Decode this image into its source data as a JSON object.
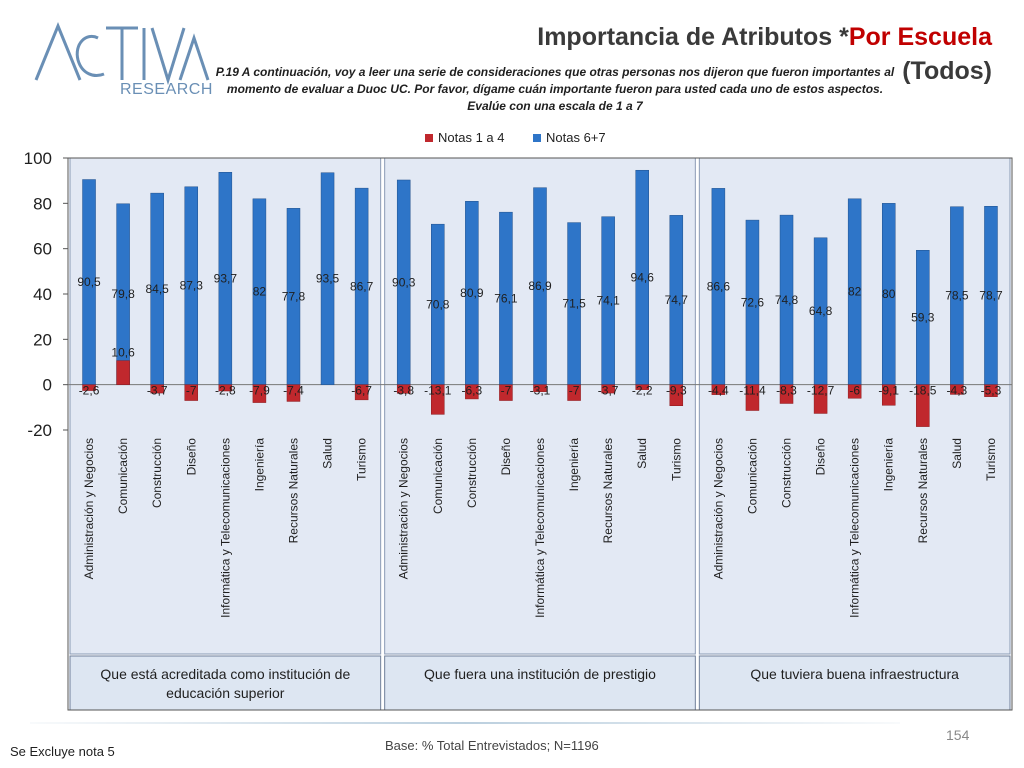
{
  "slide": {
    "title_main": "Importancia de Atributos *",
    "title_red": "Por Escuela",
    "title_line2": "(Todos)",
    "question": "P.19 A continuación, voy a leer una serie de consideraciones que otras personas nos dijeron que fueron importantes al momento de evaluar a Duoc UC. Por favor, dígame cuán importante fueron para usted cada uno de estos aspectos. Evalúe con una escala de 1 a 7",
    "logo_main": "ACTIVA",
    "logo_sub": "RESEARCH",
    "footer_note": "Se Excluye nota 5",
    "footer_base": "Base: % Total Entrevistados; N=1196",
    "page_number": "154",
    "colors": {
      "positive": "#2e75c8",
      "negative": "#c0282d",
      "title_red": "#c00000"
    }
  },
  "chart_data": {
    "type": "bar",
    "ylim": [
      -20,
      100
    ],
    "yticks": [
      -20,
      0,
      20,
      40,
      60,
      80,
      100
    ],
    "legend": [
      {
        "name": "Notas 1 a 4",
        "color": "#c0282d"
      },
      {
        "name": "Notas 6+7",
        "color": "#2e75c8"
      }
    ],
    "legend_position": "top",
    "categories": [
      "Administración y Negocios",
      "Comunicación",
      "Construcción",
      "Diseño",
      "Informática y Telecomunicaciones",
      "Ingeniería",
      "Recursos Naturales",
      "Salud",
      "Turismo"
    ],
    "groups": [
      {
        "name": "Que está acreditada como institución de educación superior",
        "notas_6_7": [
          90.5,
          79.8,
          84.5,
          87.3,
          93.7,
          82,
          77.8,
          93.5,
          86.7
        ],
        "notas_1_4": [
          -2.6,
          10.6,
          -3.7,
          -7,
          -2.8,
          -7.9,
          -7.4,
          null,
          -6.7
        ],
        "labels_6_7": [
          "90,5",
          "79,8",
          "84,5",
          "87,3",
          "93,7",
          "82",
          "77,8",
          "93,5",
          "86,7"
        ],
        "labels_1_4": [
          "-2,6",
          "10,6",
          "-3,7",
          "-7",
          "-2,8",
          "-7,9",
          "-7,4",
          "",
          "-6,7"
        ]
      },
      {
        "name": "Que fuera una institución de prestigio",
        "notas_6_7": [
          90.3,
          70.8,
          80.9,
          76.1,
          86.9,
          71.5,
          74.1,
          94.6,
          74.7
        ],
        "notas_1_4": [
          -3.8,
          -13.1,
          -6.3,
          -7,
          -3.1,
          -7,
          -3.7,
          -2.2,
          -9.3
        ],
        "labels_6_7": [
          "90,3",
          "70,8",
          "80,9",
          "76,1",
          "86,9",
          "71,5",
          "74,1",
          "94,6",
          "74,7"
        ],
        "labels_1_4": [
          "-3,8",
          "-13,1",
          "-6,3",
          "-7",
          "-3,1",
          "-7",
          "-3,7",
          "-2,2",
          "-9,3"
        ]
      },
      {
        "name": "Que tuviera buena infraestructura",
        "notas_6_7": [
          86.6,
          72.6,
          74.8,
          64.8,
          82,
          80,
          59.3,
          78.5,
          78.7
        ],
        "notas_1_4": [
          -4.4,
          -11.4,
          -8.3,
          -12.7,
          -6,
          -9.1,
          -18.5,
          -4.3,
          -5.3
        ],
        "labels_6_7": [
          "86,6",
          "72,6",
          "74,8",
          "64,8",
          "82",
          "80",
          "59,3",
          "78,5",
          "78,7"
        ],
        "labels_1_4": [
          "-4,4",
          "-11,4",
          "-8,3",
          "-12,7",
          "-6",
          "-9,1",
          "-18,5",
          "-4,3",
          "-5,3"
        ]
      }
    ]
  }
}
